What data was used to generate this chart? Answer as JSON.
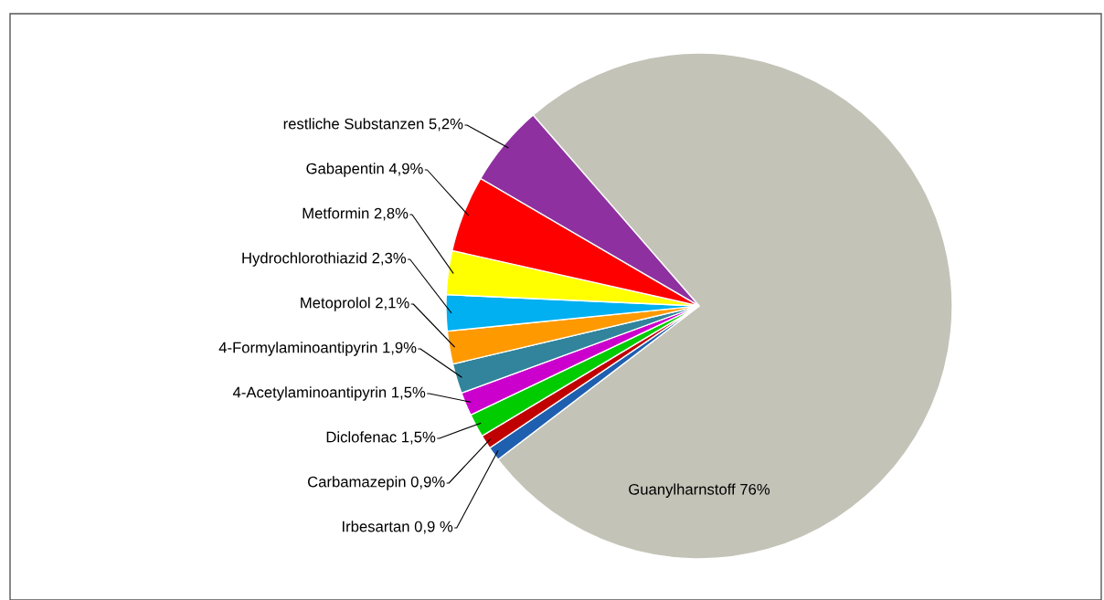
{
  "chart_data": {
    "type": "pie",
    "categories": [
      "Guanylharnstoff",
      "Irbesartan",
      "Carbamazepin",
      "Diclofenac",
      "4-Acetylaminoantipyrin",
      "4-Formylaminoantipyrin",
      "Metoprolol",
      "Hydrochlorothiazid",
      "Metformin",
      "Gabapentin",
      "restliche Substanzen"
    ],
    "values": [
      76,
      0.9,
      0.9,
      1.5,
      1.5,
      1.9,
      2.1,
      2.3,
      2.8,
      4.9,
      5.2
    ],
    "value_labels": [
      "76%",
      "0,9 %",
      "0,9%",
      "1,5%",
      "1,5%",
      "1,9%",
      "2,1%",
      "2,3%",
      "2,8%",
      "4,9%",
      "5,2%"
    ],
    "colors": [
      "#c4c3b8",
      "#1f5fb0",
      "#c00000",
      "#00cc00",
      "#cc00cc",
      "#31849b",
      "#ff9900",
      "#00b0f0",
      "#ffff00",
      "#ff0000",
      "#8e30a0"
    ],
    "legend": false
  }
}
